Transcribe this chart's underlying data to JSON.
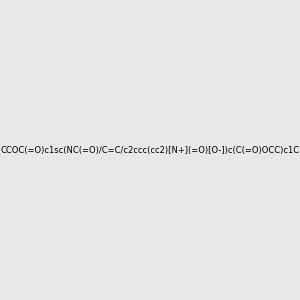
{
  "smiles": "CCOC(=O)c1sc(NC(=O)/C=C/c2ccc(cc2)[N+](=O)[O-])c(C(=O)OCC)c1C",
  "image_size": 300,
  "background_color": "#e8e8e8",
  "title": ""
}
